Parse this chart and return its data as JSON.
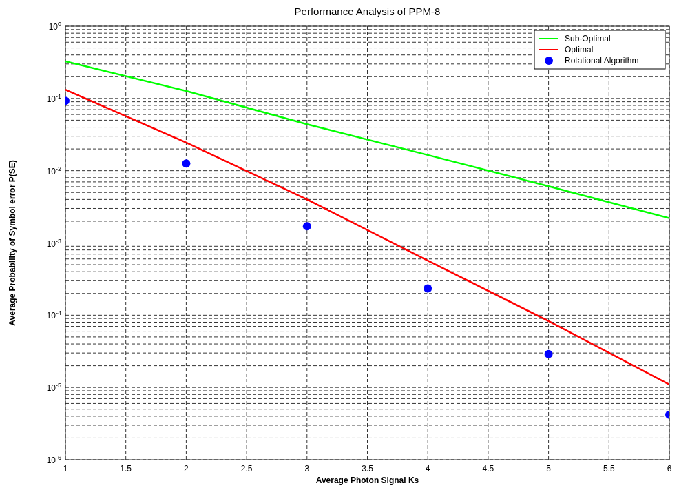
{
  "chart_data": {
    "type": "line",
    "title": "Performance Analysis of PPM-8",
    "xlabel": "Average Photon Signal Ks",
    "ylabel": "Average Probability of Symbol error P(SE)",
    "x": [
      1,
      2,
      3,
      4,
      5,
      6
    ],
    "series": [
      {
        "name": "Sub-Optimal",
        "color": "#00ff00",
        "values": [
          0.326,
          0.127,
          0.044,
          0.0165,
          0.0061,
          0.0022
        ],
        "marker": "none"
      },
      {
        "name": "Optimal",
        "color": "#ff0000",
        "values": [
          0.132,
          0.0245,
          0.004,
          0.00057,
          8.3e-05,
          1.1e-05
        ],
        "marker": "none"
      },
      {
        "name": "Rotational Algorithm",
        "type": "scatter",
        "color": "#0000ff",
        "values": [
          0.093,
          0.0126,
          0.0017,
          0.000235,
          2.9e-05,
          4.2e-06
        ],
        "marker": "circle"
      }
    ],
    "xlim": [
      1,
      6
    ],
    "xticks": [
      1,
      1.5,
      2,
      2.5,
      3,
      3.5,
      4,
      4.5,
      5,
      5.5,
      6
    ],
    "ylim": [
      1e-06,
      1
    ],
    "yticks": [
      {
        "value": 1e-06,
        "label": "10$^{-6}$"
      },
      {
        "value": 1e-05,
        "label": "10$^{-5}$"
      },
      {
        "value": 0.0001,
        "label": "10$^{-4}$"
      },
      {
        "value": 0.001,
        "label": "10$^{-3}$"
      },
      {
        "value": 0.01,
        "label": "10$^{-2}$"
      },
      {
        "value": 0.1,
        "label": "10$^{-1}$"
      },
      {
        "value": 1,
        "label": "10$^{0}$"
      }
    ],
    "log": "y",
    "grid": true,
    "legend": "top right",
    "line_style": "solid"
  }
}
